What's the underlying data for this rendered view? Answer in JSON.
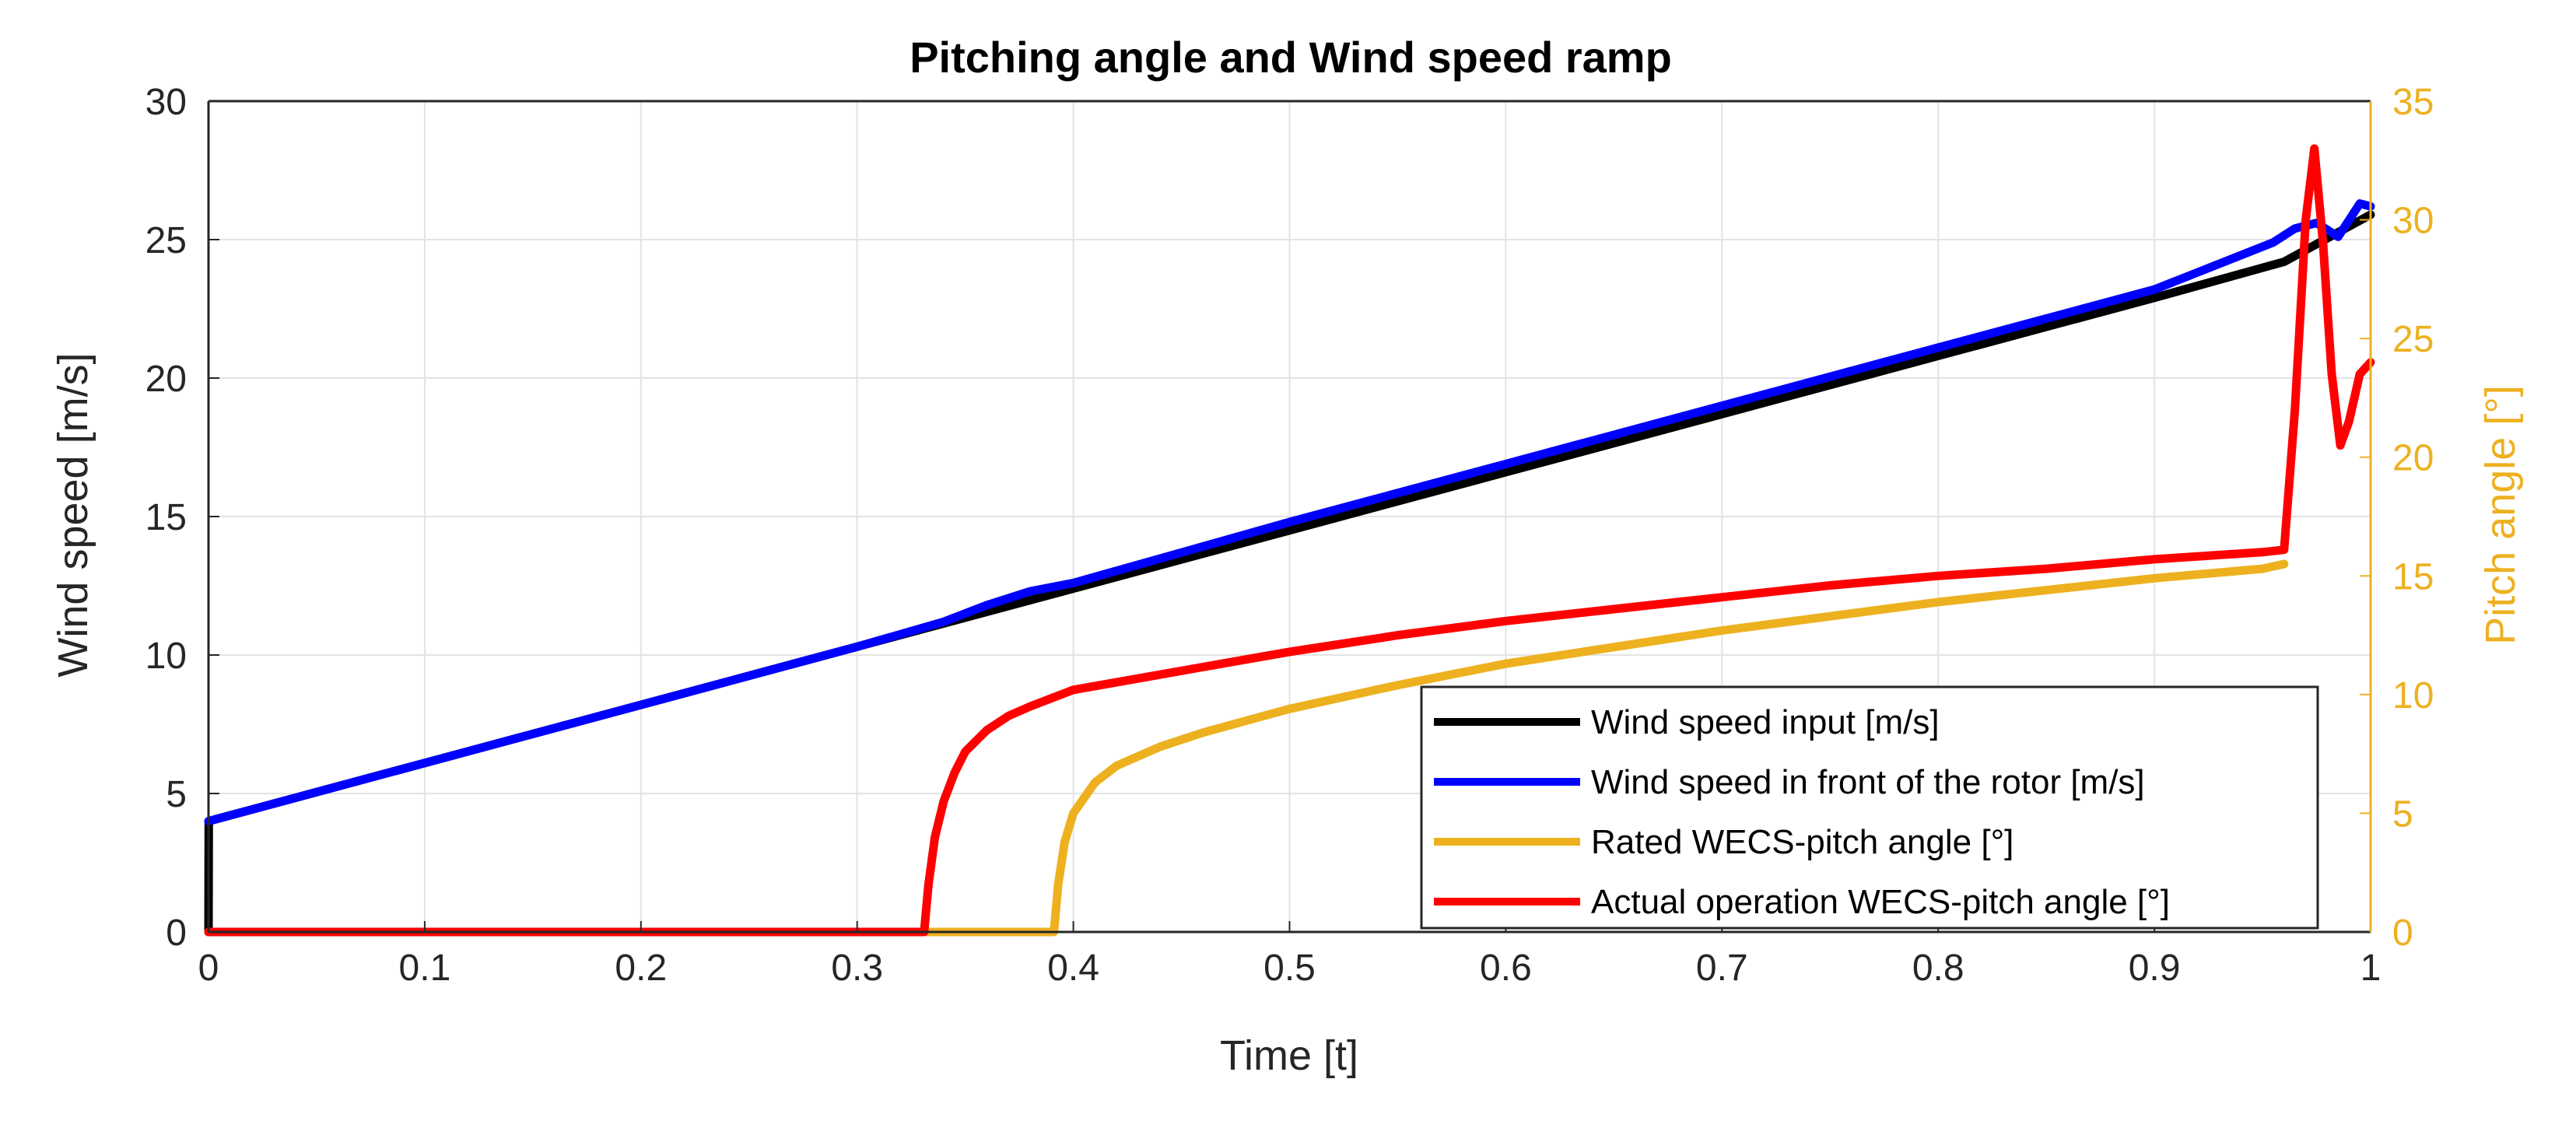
{
  "chart_data": {
    "type": "line",
    "title": "Pitching angle and Wind speed ramp",
    "xlabel": "Time [t]",
    "ylabel_left": "Wind speed [m/s]",
    "ylabel_right": "Pitch angle [°]",
    "xlim": [
      0,
      1
    ],
    "ylim_left": [
      0,
      30
    ],
    "ylim_right": [
      0,
      35
    ],
    "x_ticks": [
      "0",
      "0.1",
      "0.2",
      "0.3",
      "0.4",
      "0.5",
      "0.6",
      "0.7",
      "0.8",
      "0.9",
      "1"
    ],
    "y_left_ticks": [
      "0",
      "5",
      "10",
      "15",
      "20",
      "25",
      "30"
    ],
    "y_right_ticks": [
      "0",
      "5",
      "10",
      "15",
      "20",
      "25",
      "30",
      "35"
    ],
    "grid": true,
    "legend_position": "bottom-right",
    "series": [
      {
        "name": "Wind speed input [m/s]",
        "axis": "left",
        "color": "#000000",
        "x": [
          0,
          0.0001,
          0.05,
          0.1,
          0.2,
          0.3,
          0.4,
          0.5,
          0.6,
          0.7,
          0.8,
          0.9,
          0.96,
          1.0
        ],
        "y": [
          0,
          4.0,
          5.05,
          6.1,
          8.2,
          10.3,
          12.4,
          14.5,
          16.6,
          18.7,
          20.8,
          22.9,
          24.2,
          25.9
        ]
      },
      {
        "name": "Wind speed in front of the rotor [m/s]",
        "axis": "left",
        "color": "#0000FF",
        "x": [
          0,
          0.1,
          0.2,
          0.3,
          0.34,
          0.36,
          0.38,
          0.4,
          0.5,
          0.6,
          0.7,
          0.8,
          0.9,
          0.955,
          0.965,
          0.975,
          0.985,
          0.99,
          0.995,
          1.0
        ],
        "y": [
          4.0,
          6.1,
          8.2,
          10.3,
          11.2,
          11.8,
          12.3,
          12.6,
          14.8,
          16.9,
          19.0,
          21.1,
          23.2,
          24.9,
          25.4,
          25.6,
          25.1,
          25.7,
          26.3,
          26.2
        ]
      },
      {
        "name": "Rated WECS-pitch angle [°]",
        "axis": "right",
        "color": "#EDB120",
        "x": [
          0,
          0.391,
          0.393,
          0.396,
          0.4,
          0.41,
          0.42,
          0.44,
          0.46,
          0.5,
          0.55,
          0.6,
          0.65,
          0.7,
          0.75,
          0.8,
          0.85,
          0.9,
          0.95,
          0.96
        ],
        "y": [
          0,
          0,
          2.0,
          3.8,
          5.0,
          6.3,
          7.0,
          7.8,
          8.4,
          9.4,
          10.4,
          11.3,
          12.0,
          12.7,
          13.3,
          13.9,
          14.4,
          14.9,
          15.3,
          15.5
        ]
      },
      {
        "name": "Actual operation WECS-pitch angle [°]",
        "axis": "right",
        "color": "#FF0000",
        "x": [
          0,
          0.331,
          0.333,
          0.336,
          0.34,
          0.345,
          0.35,
          0.36,
          0.37,
          0.38,
          0.4,
          0.45,
          0.5,
          0.55,
          0.6,
          0.65,
          0.7,
          0.75,
          0.8,
          0.85,
          0.9,
          0.95,
          0.96,
          0.965,
          0.97,
          0.974,
          0.978,
          0.982,
          0.986,
          0.99,
          0.995,
          1.0
        ],
        "y": [
          0,
          0,
          2.0,
          4.0,
          5.5,
          6.7,
          7.6,
          8.5,
          9.1,
          9.5,
          10.2,
          11.0,
          11.8,
          12.5,
          13.1,
          13.6,
          14.1,
          14.6,
          15.0,
          15.3,
          15.7,
          16.0,
          16.1,
          22.0,
          30.0,
          33.0,
          29.0,
          23.5,
          20.5,
          21.5,
          23.5,
          24.0
        ]
      }
    ]
  }
}
